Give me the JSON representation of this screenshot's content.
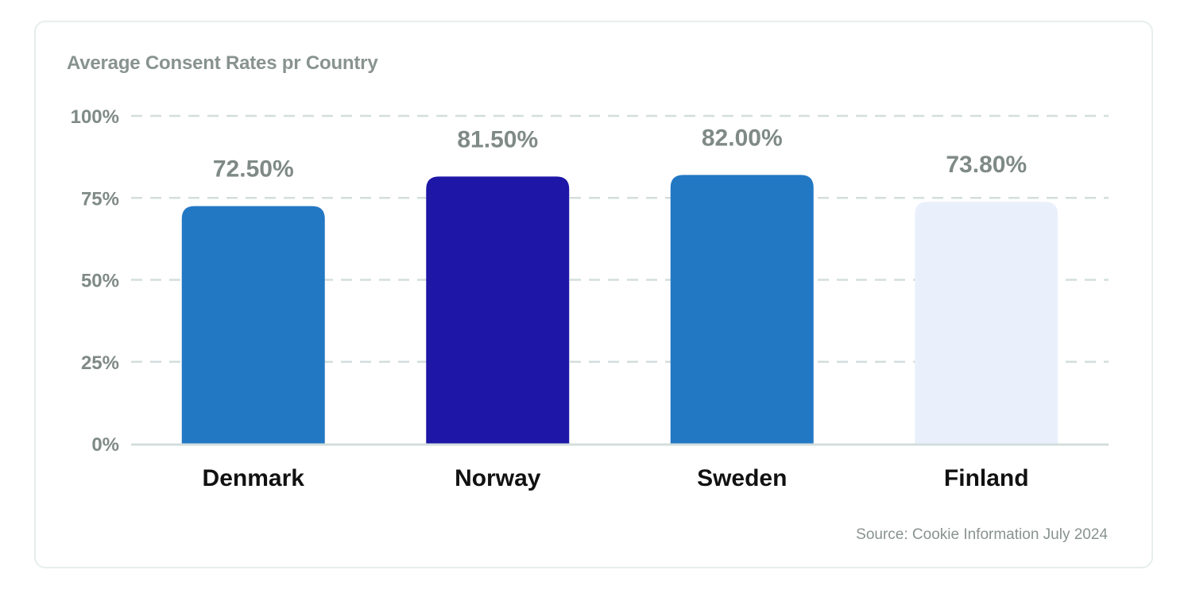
{
  "title": "Average Consent Rates pr Country",
  "source": "Source: Cookie Information July 2024",
  "chart_data": {
    "type": "bar",
    "title": "Average Consent Rates pr Country",
    "categories": [
      "Denmark",
      "Norway",
      "Sweden",
      "Finland"
    ],
    "values": [
      72.5,
      81.5,
      82.0,
      73.8
    ],
    "value_labels": [
      "72.50%",
      "81.50%",
      "82.00%",
      "73.80%"
    ],
    "bar_colors": [
      "#2378c4",
      "#1d16a6",
      "#2378c4",
      "#eaf0fb"
    ],
    "yticks": [
      0,
      25,
      50,
      75,
      100
    ],
    "ytick_labels": [
      "0%",
      "25%",
      "50%",
      "75%",
      "100%"
    ],
    "ylim": [
      0,
      100
    ],
    "xlabel": "",
    "ylabel": "",
    "grid": "dashed horizontal",
    "legend": "none"
  }
}
